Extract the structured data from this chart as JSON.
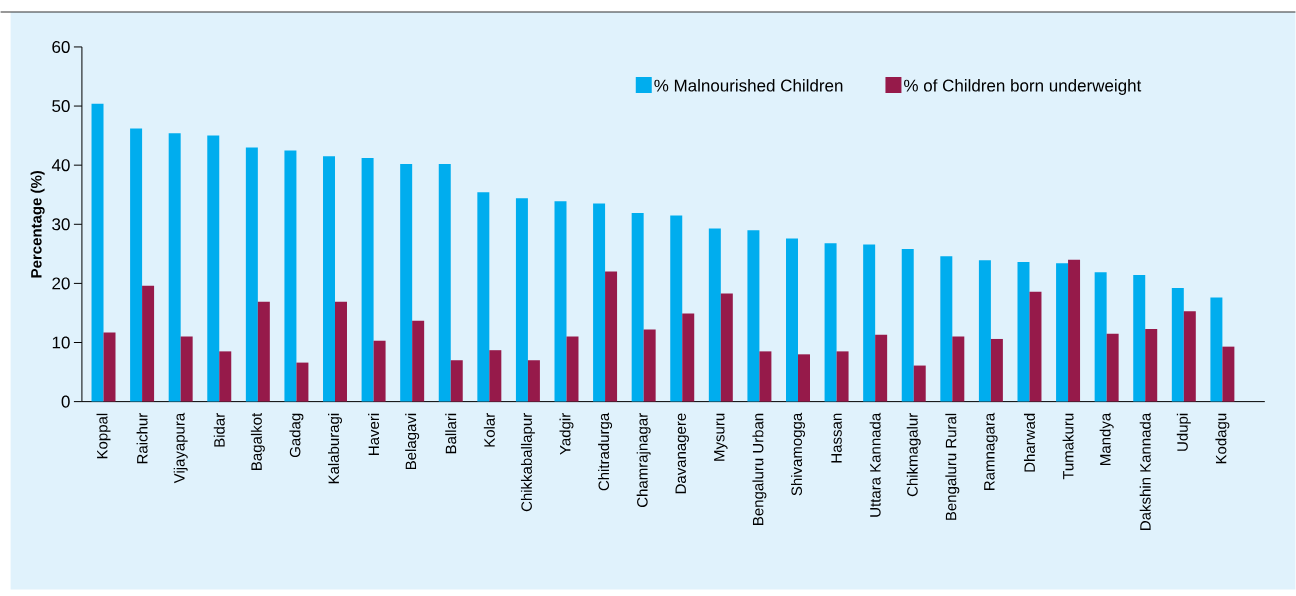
{
  "chart_data": {
    "type": "bar",
    "ylabel": "Percentage (%)",
    "categories": [
      "Koppal",
      "Raichur",
      "Vijayapura",
      "Bidar",
      "Bagalkot",
      "Gadag",
      "Kalaburagi",
      "Haveri",
      "Belagavi",
      "Ballari",
      "Kolar",
      "Chikkaballapur",
      "Yadgir",
      "Chitradurga",
      "Chamrajnagar",
      "Davanagere",
      "Mysuru",
      "Bengaluru Urban",
      "Shivamogga",
      "Hassan",
      "Uttara Kannada",
      "Chikmagalur",
      "Bengaluru Rural",
      "Ramnagara",
      "Dharwad",
      "Tumakuru",
      "Mandya",
      "Dakshin Kannada",
      "Udupi",
      "Kodagu"
    ],
    "series": [
      {
        "name": "% Malnourished Children",
        "color": "#00adee",
        "values": [
          50.4,
          46.2,
          45.4,
          45.0,
          43.0,
          42.5,
          41.5,
          41.2,
          40.2,
          40.2,
          35.4,
          34.4,
          33.9,
          33.5,
          31.9,
          31.5,
          29.3,
          29.0,
          27.6,
          26.8,
          26.6,
          25.8,
          24.6,
          23.9,
          23.6,
          23.4,
          21.9,
          21.4,
          19.2,
          17.6
        ]
      },
      {
        "name": "% of Children born underweight",
        "color": "#961a4a",
        "values": [
          11.7,
          19.6,
          11.0,
          8.5,
          16.9,
          6.6,
          16.9,
          10.3,
          13.7,
          7.0,
          8.7,
          7.0,
          11.0,
          22.0,
          12.2,
          14.9,
          18.3,
          8.5,
          8.0,
          8.5,
          11.3,
          6.1,
          11.0,
          10.6,
          18.6,
          24.0,
          11.5,
          12.3,
          15.3,
          9.3
        ]
      }
    ],
    "ylim": [
      0,
      60
    ],
    "yticks": [
      0,
      10,
      20,
      30,
      40,
      50,
      60
    ],
    "legend": "top right"
  }
}
